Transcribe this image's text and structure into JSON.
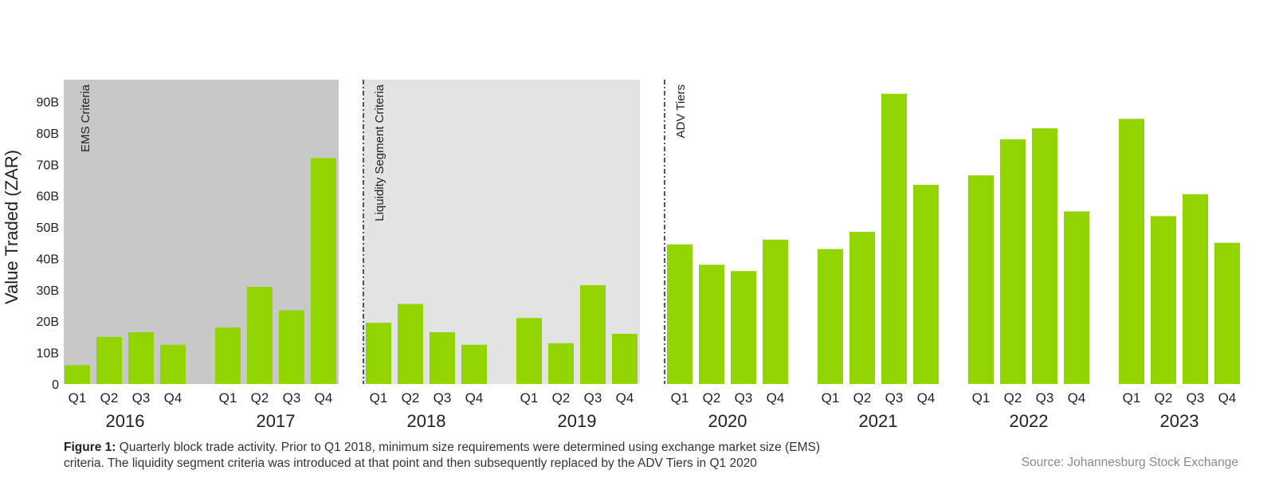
{
  "chart_data": {
    "type": "bar",
    "ylabel": "Value Traded (ZAR)",
    "yticks": [
      "0",
      "10B",
      "20B",
      "30B",
      "40B",
      "50B",
      "60B",
      "70B",
      "80B",
      "90B"
    ],
    "ylim": [
      0,
      97
    ],
    "years": [
      "2016",
      "2017",
      "2018",
      "2019",
      "2020",
      "2021",
      "2022",
      "2023"
    ],
    "quarters": [
      "Q1",
      "Q2",
      "Q3",
      "Q4"
    ],
    "values": [
      [
        6,
        15,
        16.5,
        12.5
      ],
      [
        18,
        31,
        23.5,
        72
      ],
      [
        19.5,
        25.5,
        16.5,
        12.5
      ],
      [
        21,
        13,
        31.5,
        16
      ],
      [
        44.5,
        38,
        36,
        46
      ],
      [
        43,
        48.5,
        92.5,
        63.5
      ],
      [
        66.5,
        78,
        81.5,
        55
      ],
      [
        84.5,
        53.5,
        60.5,
        45
      ]
    ],
    "bar_color": "#92d400",
    "regions": [
      {
        "label": "EMS Criteria",
        "from_year": 0,
        "to_year": 1,
        "shade": "#c8c8c8"
      },
      {
        "label": "Liquidity Segment Criteria",
        "from_year": 2,
        "to_year": 3,
        "shade": "#e3e3e3"
      },
      {
        "label": "ADV Tiers",
        "from_year": 4,
        "to_year": 7,
        "shade": "none"
      }
    ],
    "divider_color": "#1f2d4d",
    "grid": false
  },
  "caption": {
    "figure_label": "Figure 1:",
    "text": "Quarterly block trade activity. Prior to Q1 2018, minimum size requirements were determined using exchange market size (EMS) criteria. The liquidity segment criteria was introduced at that point and then subsequently replaced by the ADV Tiers in Q1 2020"
  },
  "source": "Source: Johannesburg Stock Exchange"
}
